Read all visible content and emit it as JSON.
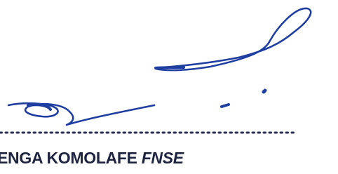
{
  "name": "ENGA KOMOLAFE",
  "title": "FNSE"
}
